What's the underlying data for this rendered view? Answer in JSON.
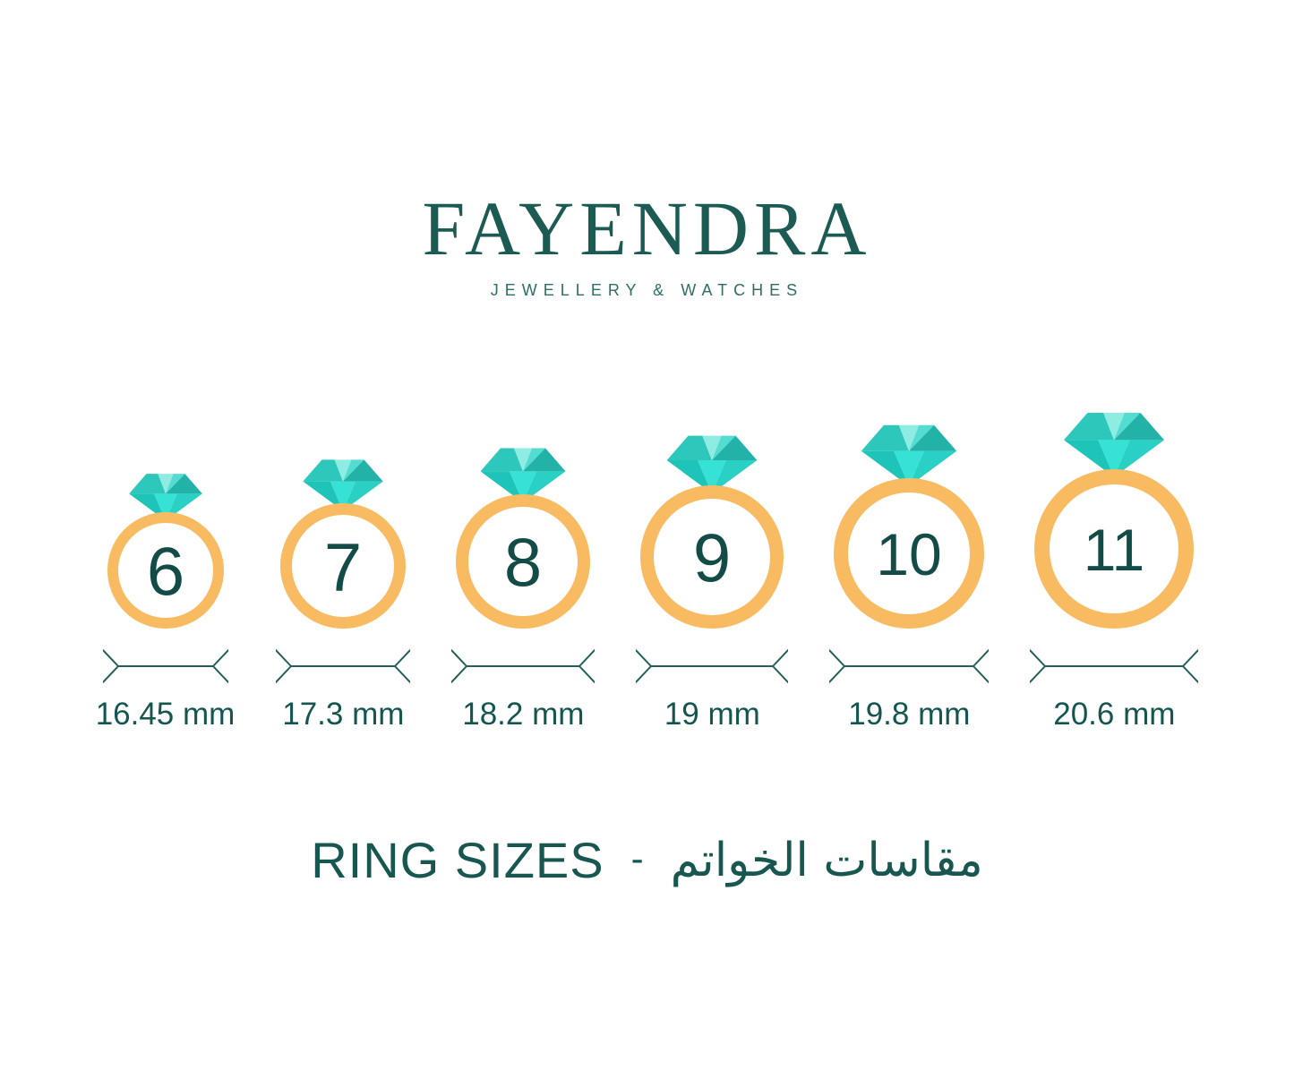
{
  "brand": {
    "name": "FAYENDRA",
    "tagline": "JEWELLERY & WATCHES"
  },
  "rings": [
    {
      "size": "6",
      "diameter": "16.45 mm"
    },
    {
      "size": "7",
      "diameter": "17.3 mm"
    },
    {
      "size": "8",
      "diameter": "18.2 mm"
    },
    {
      "size": "9",
      "diameter": "19 mm"
    },
    {
      "size": "10",
      "diameter": "19.8 mm"
    },
    {
      "size": "11",
      "diameter": "20.6 mm"
    }
  ],
  "footer": {
    "title_en": "RING SIZES",
    "separator": "-",
    "title_ar": "مقاسات الخواتم"
  },
  "icons": {
    "gem": "diamond-icon",
    "band": "ring-band",
    "measure": "measurement-arrows"
  },
  "colors": {
    "logo_teal": "#1B5B53",
    "tagline_teal": "#2F6D65",
    "number_teal": "#134C47",
    "label_teal": "#155550",
    "measure_line": "#235F58",
    "band_gold": "#F8BB62",
    "diamond": {
      "crown_left": "#2EC7BC",
      "crown_center": "#8FECE3",
      "crown_right_upper": "#52DCD2",
      "crown_right": "#23B2A8",
      "pavilion_left": "#1FC4B8",
      "pavilion_center": "#35E2D4",
      "pavilion_right": "#2AD0C3"
    }
  }
}
